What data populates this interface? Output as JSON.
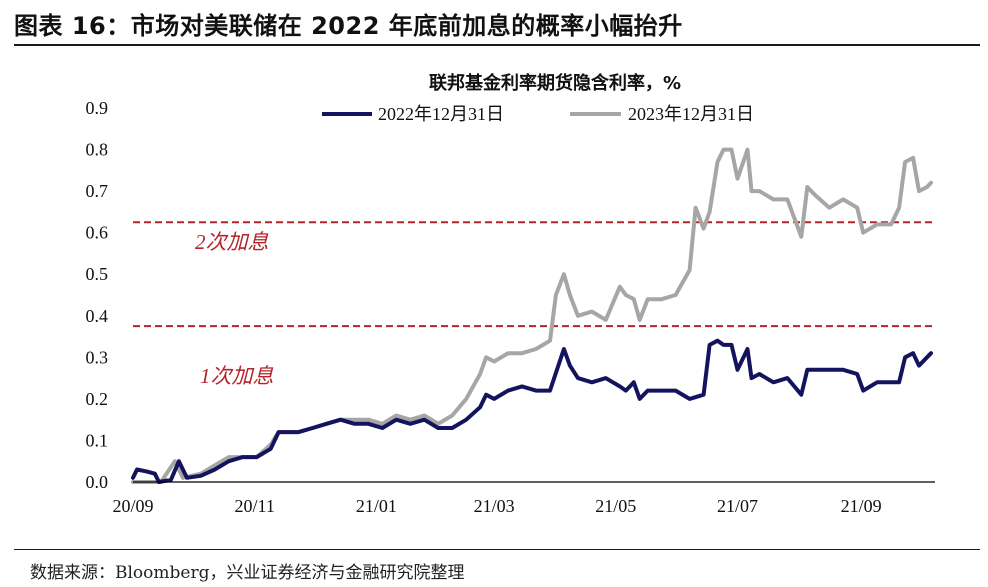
{
  "figure": {
    "title": "图表 16：市场对美联储在 2022 年底前加息的概率小幅抬升",
    "source": "数据来源：Bloomberg，兴业证券经济与金融研究院整理"
  },
  "chart_data": {
    "type": "line",
    "title": "联邦基金利率期货隐含利率，%",
    "xlabel": "",
    "ylabel": "",
    "x_ticks": [
      "20/09",
      "20/11",
      "21/01",
      "21/03",
      "21/05",
      "21/07",
      "21/09"
    ],
    "x_range": [
      "2020-09-01",
      "2021-10-08"
    ],
    "y_ticks": [
      "0.0",
      "0.1",
      "0.2",
      "0.3",
      "0.4",
      "0.5",
      "0.6",
      "0.7",
      "0.8",
      "0.9"
    ],
    "ylim": [
      0,
      0.9
    ],
    "grid": false,
    "legend_position": "top",
    "colors": {
      "series_1": "#14145e",
      "series_2": "#a6a6a6",
      "reference": "#b3242b"
    },
    "series": [
      {
        "name": "2022年12月31日",
        "points": [
          [
            "2020-09-01",
            0.01
          ],
          [
            "2020-09-03",
            0.03
          ],
          [
            "2020-09-08",
            0.025
          ],
          [
            "2020-09-12",
            0.02
          ],
          [
            "2020-09-14",
            0.0
          ],
          [
            "2020-09-20",
            0.005
          ],
          [
            "2020-09-24",
            0.05
          ],
          [
            "2020-09-28",
            0.01
          ],
          [
            "2020-10-05",
            0.015
          ],
          [
            "2020-10-12",
            0.03
          ],
          [
            "2020-10-19",
            0.05
          ],
          [
            "2020-10-26",
            0.06
          ],
          [
            "2020-11-02",
            0.06
          ],
          [
            "2020-11-09",
            0.08
          ],
          [
            "2020-11-13",
            0.12
          ],
          [
            "2020-11-23",
            0.12
          ],
          [
            "2020-11-30",
            0.13
          ],
          [
            "2020-12-07",
            0.14
          ],
          [
            "2020-12-14",
            0.15
          ],
          [
            "2020-12-21",
            0.14
          ],
          [
            "2020-12-28",
            0.14
          ],
          [
            "2021-01-04",
            0.13
          ],
          [
            "2021-01-11",
            0.15
          ],
          [
            "2021-01-18",
            0.14
          ],
          [
            "2021-01-25",
            0.15
          ],
          [
            "2021-02-01",
            0.13
          ],
          [
            "2021-02-08",
            0.13
          ],
          [
            "2021-02-15",
            0.15
          ],
          [
            "2021-02-22",
            0.18
          ],
          [
            "2021-02-25",
            0.21
          ],
          [
            "2021-03-01",
            0.2
          ],
          [
            "2021-03-08",
            0.22
          ],
          [
            "2021-03-15",
            0.23
          ],
          [
            "2021-03-22",
            0.22
          ],
          [
            "2021-03-29",
            0.22
          ],
          [
            "2021-04-05",
            0.32
          ],
          [
            "2021-04-08",
            0.28
          ],
          [
            "2021-04-12",
            0.25
          ],
          [
            "2021-04-19",
            0.24
          ],
          [
            "2021-04-26",
            0.25
          ],
          [
            "2021-05-03",
            0.23
          ],
          [
            "2021-05-06",
            0.22
          ],
          [
            "2021-05-10",
            0.24
          ],
          [
            "2021-05-13",
            0.2
          ],
          [
            "2021-05-17",
            0.22
          ],
          [
            "2021-05-24",
            0.22
          ],
          [
            "2021-05-31",
            0.22
          ],
          [
            "2021-06-07",
            0.2
          ],
          [
            "2021-06-14",
            0.21
          ],
          [
            "2021-06-17",
            0.33
          ],
          [
            "2021-06-21",
            0.34
          ],
          [
            "2021-06-24",
            0.33
          ],
          [
            "2021-06-28",
            0.33
          ],
          [
            "2021-07-01",
            0.27
          ],
          [
            "2021-07-06",
            0.32
          ],
          [
            "2021-07-08",
            0.25
          ],
          [
            "2021-07-12",
            0.26
          ],
          [
            "2021-07-19",
            0.24
          ],
          [
            "2021-07-26",
            0.25
          ],
          [
            "2021-08-02",
            0.21
          ],
          [
            "2021-08-05",
            0.27
          ],
          [
            "2021-08-09",
            0.27
          ],
          [
            "2021-08-16",
            0.27
          ],
          [
            "2021-08-23",
            0.27
          ],
          [
            "2021-08-30",
            0.26
          ],
          [
            "2021-09-02",
            0.22
          ],
          [
            "2021-09-09",
            0.24
          ],
          [
            "2021-09-16",
            0.24
          ],
          [
            "2021-09-20",
            0.24
          ],
          [
            "2021-09-23",
            0.3
          ],
          [
            "2021-09-27",
            0.31
          ],
          [
            "2021-09-30",
            0.28
          ],
          [
            "2021-10-04",
            0.3
          ],
          [
            "2021-10-06",
            0.31
          ]
        ]
      },
      {
        "name": "2023年12月31日",
        "points": [
          [
            "2020-09-01",
            0.0
          ],
          [
            "2020-09-08",
            0.0
          ],
          [
            "2020-09-15",
            0.0
          ],
          [
            "2020-09-22",
            0.05
          ],
          [
            "2020-09-26",
            0.01
          ],
          [
            "2020-10-05",
            0.02
          ],
          [
            "2020-10-12",
            0.04
          ],
          [
            "2020-10-19",
            0.06
          ],
          [
            "2020-10-26",
            0.06
          ],
          [
            "2020-11-02",
            0.06
          ],
          [
            "2020-11-09",
            0.09
          ],
          [
            "2020-11-13",
            0.12
          ],
          [
            "2020-11-23",
            0.12
          ],
          [
            "2020-11-30",
            0.13
          ],
          [
            "2020-12-07",
            0.14
          ],
          [
            "2020-12-14",
            0.15
          ],
          [
            "2020-12-21",
            0.15
          ],
          [
            "2020-12-28",
            0.15
          ],
          [
            "2021-01-04",
            0.14
          ],
          [
            "2021-01-11",
            0.16
          ],
          [
            "2021-01-18",
            0.15
          ],
          [
            "2021-01-25",
            0.16
          ],
          [
            "2021-02-01",
            0.14
          ],
          [
            "2021-02-08",
            0.16
          ],
          [
            "2021-02-15",
            0.2
          ],
          [
            "2021-02-22",
            0.26
          ],
          [
            "2021-02-25",
            0.3
          ],
          [
            "2021-03-01",
            0.29
          ],
          [
            "2021-03-08",
            0.31
          ],
          [
            "2021-03-15",
            0.31
          ],
          [
            "2021-03-22",
            0.32
          ],
          [
            "2021-03-29",
            0.34
          ],
          [
            "2021-04-01",
            0.45
          ],
          [
            "2021-04-05",
            0.5
          ],
          [
            "2021-04-08",
            0.45
          ],
          [
            "2021-04-12",
            0.4
          ],
          [
            "2021-04-19",
            0.41
          ],
          [
            "2021-04-26",
            0.39
          ],
          [
            "2021-05-03",
            0.47
          ],
          [
            "2021-05-06",
            0.45
          ],
          [
            "2021-05-10",
            0.44
          ],
          [
            "2021-05-13",
            0.39
          ],
          [
            "2021-05-17",
            0.44
          ],
          [
            "2021-05-24",
            0.44
          ],
          [
            "2021-05-31",
            0.45
          ],
          [
            "2021-06-07",
            0.51
          ],
          [
            "2021-06-10",
            0.66
          ],
          [
            "2021-06-14",
            0.61
          ],
          [
            "2021-06-17",
            0.65
          ],
          [
            "2021-06-21",
            0.77
          ],
          [
            "2021-06-24",
            0.8
          ],
          [
            "2021-06-28",
            0.8
          ],
          [
            "2021-07-01",
            0.73
          ],
          [
            "2021-07-06",
            0.8
          ],
          [
            "2021-07-08",
            0.7
          ],
          [
            "2021-07-12",
            0.7
          ],
          [
            "2021-07-19",
            0.68
          ],
          [
            "2021-07-26",
            0.68
          ],
          [
            "2021-08-02",
            0.59
          ],
          [
            "2021-08-05",
            0.71
          ],
          [
            "2021-08-09",
            0.69
          ],
          [
            "2021-08-16",
            0.66
          ],
          [
            "2021-08-23",
            0.68
          ],
          [
            "2021-08-30",
            0.66
          ],
          [
            "2021-09-02",
            0.6
          ],
          [
            "2021-09-09",
            0.62
          ],
          [
            "2021-09-16",
            0.62
          ],
          [
            "2021-09-20",
            0.66
          ],
          [
            "2021-09-23",
            0.77
          ],
          [
            "2021-09-27",
            0.78
          ],
          [
            "2021-09-30",
            0.7
          ],
          [
            "2021-10-04",
            0.71
          ],
          [
            "2021-10-06",
            0.72
          ]
        ]
      }
    ],
    "reference_lines": [
      {
        "y": 0.625,
        "label": "2次加息"
      },
      {
        "y": 0.375,
        "label": "1次加息"
      }
    ]
  }
}
